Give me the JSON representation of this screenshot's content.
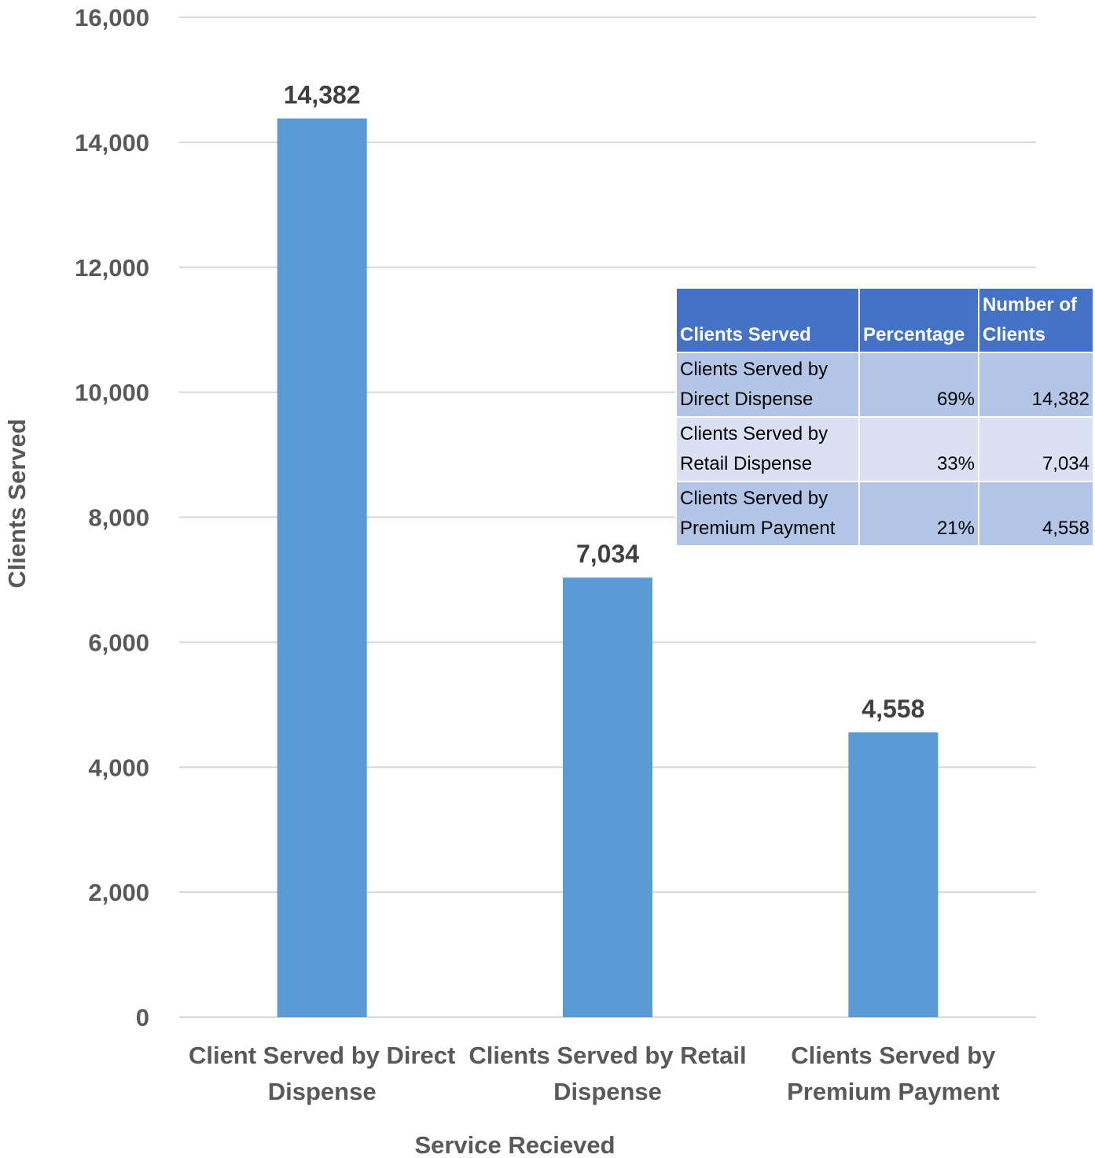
{
  "chart_data": {
    "type": "bar",
    "categories": [
      [
        "Client Served by Direct",
        "Dispense"
      ],
      [
        "Clients Served by Retail",
        "Dispense"
      ],
      [
        "Clients Served by",
        "Premium Payment"
      ]
    ],
    "values": [
      14382,
      7034,
      4558
    ],
    "value_labels": [
      "14,382",
      "7,034",
      "4,558"
    ],
    "xlabel": "Service Recieved",
    "ylabel": "Clients Served",
    "ylim": [
      0,
      16000
    ],
    "yticks": [
      0,
      2000,
      4000,
      6000,
      8000,
      10000,
      12000,
      14000,
      16000
    ],
    "ytick_labels": [
      "0",
      "2,000",
      "4,000",
      "6,000",
      "8,000",
      "10,000",
      "12,000",
      "14,000",
      "16,000"
    ],
    "grid": true,
    "legend": "none",
    "colors": {
      "bar": "#5b9bd5",
      "gridline": "#d9d9d9",
      "tick_text": "#595959",
      "data_label_text": "#404040"
    }
  },
  "table": {
    "headers": [
      "Clients Served",
      "Percentage",
      "Number of Clients"
    ],
    "rows": [
      {
        "service": "Clients Served by Direct Dispense",
        "percentage": "69%",
        "clients": "14,382"
      },
      {
        "service": "Clients Served by Retail Dispense",
        "percentage": "33%",
        "clients": "7,034"
      },
      {
        "service": "Clients Served by Premium Payment",
        "percentage": "21%",
        "clients": "4,558"
      }
    ],
    "colors": {
      "header": "#4472c4",
      "row_dark": "#b4c6e7",
      "row_light": "#d9e1f2"
    }
  }
}
